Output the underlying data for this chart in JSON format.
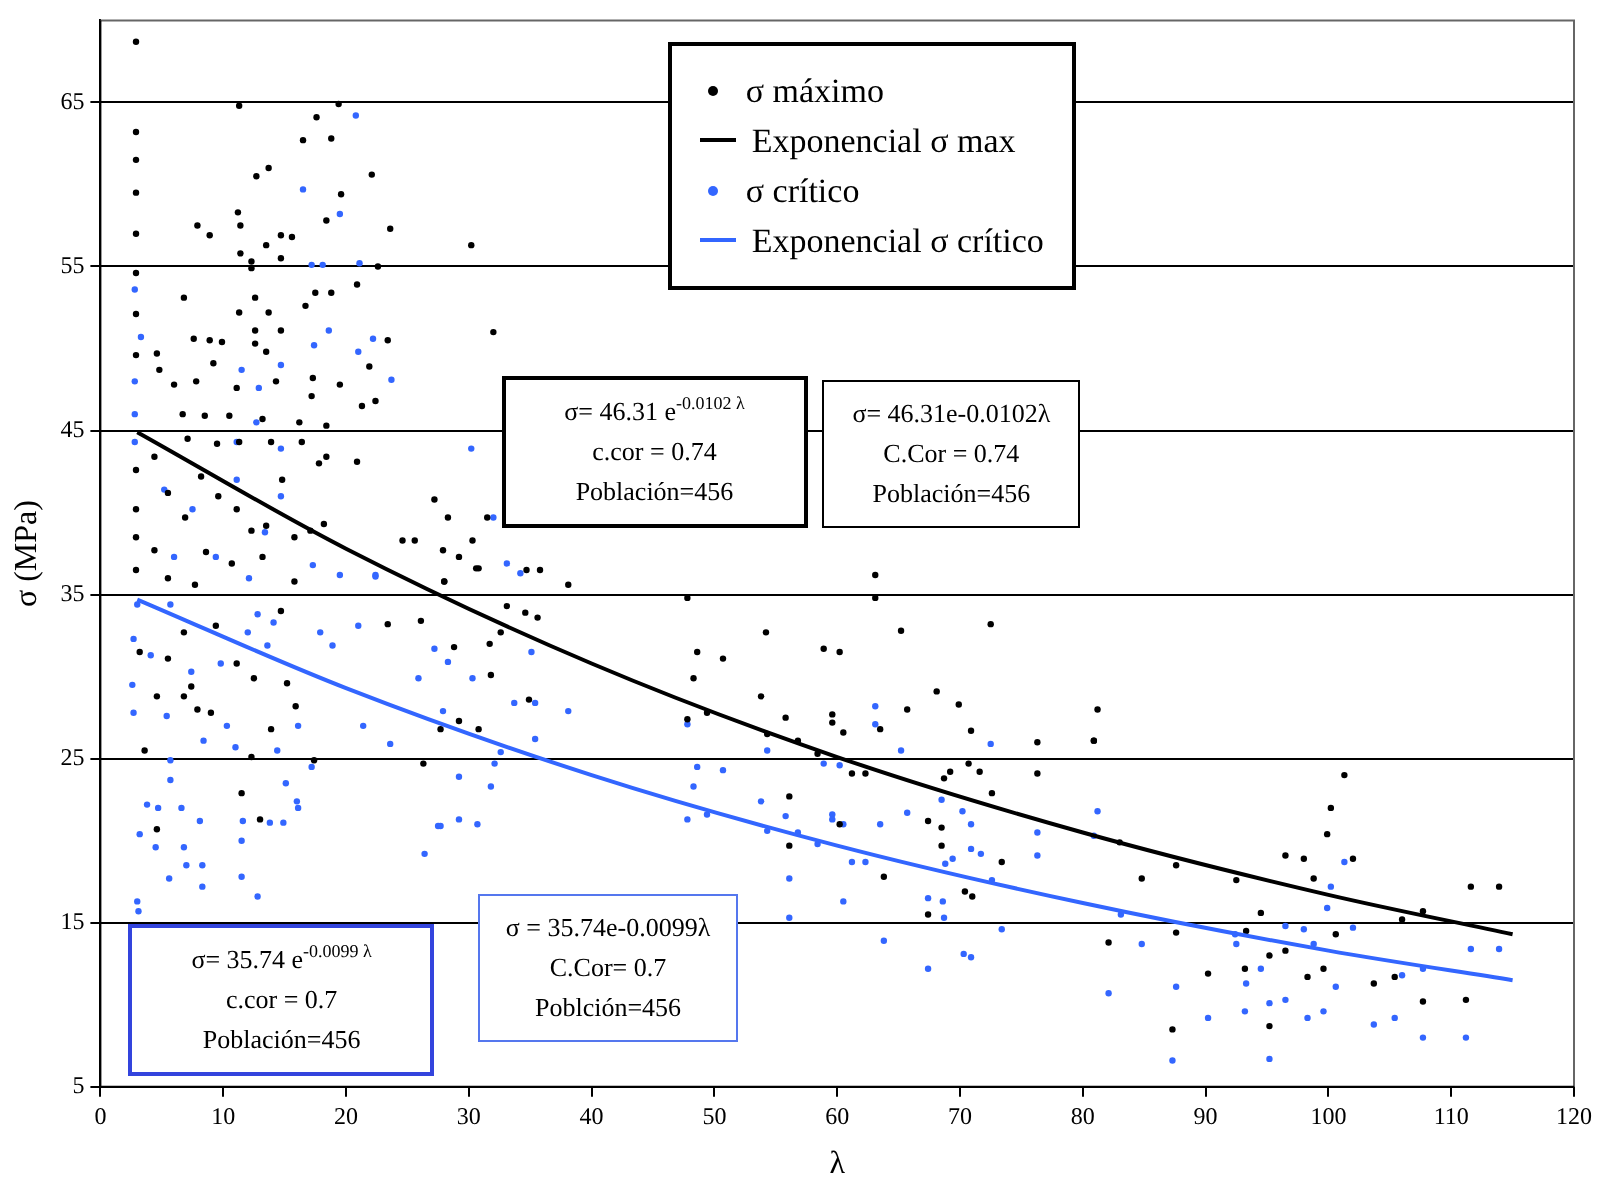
{
  "chart_data": {
    "type": "scatter",
    "xlabel": "λ",
    "ylabel": "σ (MPa)",
    "xlim": [
      0,
      120
    ],
    "xticks": [
      0,
      10,
      20,
      30,
      40,
      50,
      60,
      70,
      80,
      90,
      100,
      110,
      120
    ],
    "ylim": [
      5,
      70
    ],
    "yticks": [
      5,
      15,
      25,
      35,
      45,
      55,
      65
    ],
    "grid": "y",
    "legend": "top",
    "annotations": [
      "σ= 46.31 e$^{-0.0102 λ}$\nc.cor = 0.74\nPoblación=456",
      "σ= 46.31e-0.0102λ\nC.Cor = 0.74\nPoblación=456",
      "σ= 35.74 e$^{-0.0099 λ}$\nc.cor = 0.7\nPoblación=456",
      "σ = 35.74e-0.0099λ\nC.Cor= 0.7\nPoblción=456"
    ],
    "series": [
      {
        "name": "σ máximo",
        "type": "scatter",
        "marker": "circle",
        "color": "#000000",
        "x": [
          2.9,
          2.9,
          2.9,
          2.9,
          2.9,
          2.9,
          2.9,
          2.9,
          11.3,
          19.4,
          17.6,
          16.5,
          18.8,
          12.7,
          13.7,
          22.1,
          19.6,
          18.4,
          7.9,
          8.9,
          11.2,
          11.4,
          14.7,
          15.6,
          23.6,
          30.2,
          11.4,
          13.5,
          14.7,
          12.3,
          22.6,
          12.3,
          6.8,
          12.6,
          11.3,
          13.7,
          17.5,
          18.8,
          20.9,
          16.7,
          32,
          23.4,
          7.6,
          8.9,
          9.9,
          12.6,
          14.7,
          4.6,
          4.8,
          6,
          7.8,
          9.2,
          11.1,
          12.6,
          13.5,
          14.3,
          17.3,
          19.5,
          21.9,
          21.3,
          22.4,
          6.7,
          8.5,
          10.5,
          13.2,
          16.2,
          17.2,
          18.4,
          7.1,
          9.5,
          11.3,
          13.9,
          16.4,
          18.4,
          20.9,
          27.2,
          28.3,
          31.5,
          24.6,
          25.6,
          27.9,
          29.2,
          30.3,
          30.8,
          34.7,
          35.8,
          38.1,
          28,
          4.4,
          5.5,
          6.9,
          8.2,
          9.6,
          11.1,
          12.3,
          13.5,
          14.8,
          15.8,
          17.1,
          17.8,
          18.2,
          4.4,
          5.5,
          8.6,
          10.7,
          13.2,
          15.8,
          7.7,
          2.9,
          2.9,
          2.9,
          2.9,
          3.6,
          4.6,
          6.8,
          7.9,
          9,
          11.5,
          13,
          4.6,
          12.3,
          13.9,
          15.9,
          17.4,
          23.4,
          26.1,
          26.3,
          27.7,
          29.2,
          28.8,
          31.7,
          31.8,
          30.8,
          32.6,
          33.1,
          34.6,
          35.6,
          34.9,
          28,
          30.6,
          6.8,
          5.5,
          3.2,
          7.4,
          9.4,
          11.1,
          12.5,
          14.7,
          15.2,
          47.8,
          48.6,
          48.3,
          50.7,
          47.8,
          49.4,
          54.2,
          53.8,
          54.3,
          55.8,
          56.8,
          58.9,
          60.2,
          59.6,
          59.6,
          60.5,
          58.4,
          61.2,
          62.3,
          63.1,
          63.1,
          63.5,
          65.2,
          65.7,
          68.1,
          69.9,
          70.9,
          72.5,
          70.7,
          71.6,
          68.7,
          69.2,
          72.6,
          60.2,
          56.1,
          56.1,
          67.4,
          68.5,
          68.5,
          73.4,
          63.8,
          70.4,
          71,
          67.4,
          76.3,
          76.3,
          80.9,
          81.2,
          80.9,
          83,
          82.1,
          84.8,
          87.6,
          87.6,
          87.3,
          90.2,
          92.5,
          93.2,
          93.3,
          94.5,
          95.2,
          95.2,
          96.5,
          96.5,
          98,
          98.3,
          98.8,
          99.6,
          100.6,
          99.9,
          101.3,
          100.2,
          102,
          103.7,
          105.4,
          106,
          107.7,
          107.7,
          111.2,
          111.6,
          113.9
        ],
        "values": [
          68.7,
          63.2,
          61.5,
          59.5,
          57,
          54.6,
          52.1,
          49.6,
          64.8,
          64.9,
          64.1,
          62.7,
          62.8,
          60.5,
          61,
          60.6,
          59.4,
          57.8,
          57.5,
          56.9,
          58.3,
          57.5,
          56.9,
          56.8,
          57.3,
          56.3,
          55.8,
          56.3,
          55.5,
          55.3,
          55,
          54.9,
          53.1,
          53.1,
          52.2,
          52.2,
          53.4,
          53.4,
          53.9,
          52.6,
          51,
          50.5,
          50.6,
          50.5,
          50.4,
          51.1,
          51.1,
          49.7,
          48.7,
          47.8,
          48,
          49.1,
          47.6,
          50.3,
          49.8,
          48,
          48.2,
          47.8,
          48.9,
          46.5,
          46.8,
          46,
          45.9,
          45.9,
          45.7,
          45.5,
          47.1,
          45.3,
          44.5,
          44.2,
          44.3,
          44.3,
          44.3,
          43.4,
          43.1,
          40.8,
          39.7,
          39.7,
          38.3,
          38.3,
          37.7,
          37.3,
          38.3,
          36.6,
          36.5,
          36.5,
          35.6,
          35.8,
          43.4,
          41.2,
          39.7,
          42.2,
          41,
          40.2,
          38.9,
          39.2,
          42,
          38.5,
          38.9,
          43,
          39.3,
          37.7,
          36,
          37.6,
          36.9,
          37.3,
          35.8,
          35.6,
          42.6,
          40.2,
          38.5,
          36.5,
          25.5,
          28.8,
          28.8,
          28,
          27.8,
          22.9,
          21.3,
          20.7,
          25.1,
          26.8,
          28.2,
          24.9,
          33.2,
          33.4,
          24.7,
          26.8,
          27.3,
          31.8,
          32,
          30.1,
          26.8,
          32.7,
          34.3,
          33.9,
          33.6,
          28.6,
          35.8,
          36.6,
          32.7,
          31.1,
          31.5,
          29.4,
          33.1,
          30.8,
          29.9,
          34,
          29.6,
          34.8,
          31.5,
          29.9,
          31.1,
          27.4,
          27.8,
          32.7,
          28.8,
          26.5,
          27.5,
          26.1,
          31.7,
          31.5,
          27.7,
          27.2,
          26.6,
          25.3,
          24.1,
          24.1,
          36.2,
          34.8,
          26.8,
          32.8,
          28,
          29.1,
          28.3,
          26.7,
          33.2,
          24.7,
          24.2,
          23.8,
          24.2,
          22.9,
          21,
          22.7,
          19.7,
          21.2,
          20.8,
          19.7,
          18.7,
          17.8,
          16.9,
          16.6,
          15.5,
          26,
          24.1,
          26.1,
          28,
          26.1,
          19.9,
          13.8,
          17.7,
          18.5,
          14.4,
          8.5,
          11.9,
          17.6,
          12.2,
          14.5,
          15.6,
          13,
          8.7,
          19.1,
          13.3,
          18.9,
          11.7,
          17.7,
          12.2,
          14.3,
          20.4,
          24,
          22,
          18.9,
          11.3,
          11.7,
          15.2,
          15.7,
          10.2,
          10.3,
          17.2,
          17.2
        ]
      },
      {
        "name": "Exponencial σ max",
        "type": "line",
        "marker": "none",
        "line_style": "solid",
        "color": "#000000",
        "x": [
          3,
          20,
          40,
          60,
          80,
          100,
          115
        ],
        "values": [
          44.9,
          37.8,
          30.8,
          25.1,
          20.5,
          16.7,
          14.3
        ]
      },
      {
        "name": "σ crítico",
        "type": "scatter",
        "marker": "circle",
        "color": "#3366ff",
        "x": [
          20.8,
          16.5,
          19.5,
          17.2,
          18.1,
          21.1,
          2.8,
          3.3,
          2.8,
          2.8,
          2.8,
          11.5,
          12.9,
          14.7,
          17.4,
          18.6,
          21,
          22.2,
          23.7,
          30.2,
          12.7,
          11.1,
          14.7,
          32,
          33.1,
          34.2,
          22.4,
          19.5,
          17.3,
          12.1,
          9.4,
          6,
          5.2,
          7.5,
          13.4,
          14.7,
          11.1,
          2.6,
          2.7,
          2.7,
          3,
          3.1,
          3.8,
          3.2,
          4.5,
          4.7,
          5.6,
          5.7,
          6.6,
          6.8,
          7,
          8.3,
          8.1,
          8.3,
          11.5,
          11.5,
          11.6,
          12.8,
          13.8,
          15.1,
          14.9,
          16,
          16.1,
          17.2,
          21.4,
          23.6,
          26.4,
          27.5,
          27.7,
          29.2,
          30.7,
          29.2,
          31.8,
          32.1,
          32.6,
          35.4,
          38.1,
          27.9,
          25.9,
          18.9,
          21,
          22.4,
          27.2,
          28.3,
          30.3,
          33.7,
          35.4,
          35.1,
          3,
          4.1,
          5.7,
          5.4,
          7.4,
          9.8,
          10.3,
          11,
          12,
          12.8,
          13.6,
          14.1,
          14.4,
          16.1,
          17.9,
          8.4,
          5.7,
          47.8,
          48.6,
          48.3,
          47.8,
          49.4,
          50.7,
          53.8,
          54.3,
          54.3,
          55.8,
          56.1,
          56.1,
          56.8,
          58.4,
          58.9,
          59.6,
          59.6,
          60.2,
          60.5,
          61.2,
          62.3,
          60.5,
          63.1,
          63.1,
          63.5,
          63.8,
          65.2,
          65.7,
          67.4,
          67.4,
          68.5,
          68.6,
          68.7,
          68.8,
          69.4,
          70.2,
          70.3,
          70.9,
          70.9,
          70.9,
          71.7,
          72.5,
          72.6,
          73.4,
          76.3,
          76.3,
          81.2,
          80.9,
          82.1,
          83.1,
          84.8,
          87.6,
          87.3,
          90.2,
          92.4,
          92.5,
          93.2,
          93.3,
          94.5,
          95.2,
          95.2,
          96.5,
          96.5,
          98,
          98.3,
          98.8,
          99.6,
          100.6,
          99.9,
          100.2,
          101.3,
          102,
          103.7,
          105.4,
          106,
          107.7,
          107.7,
          111.2,
          111.6,
          113.9
        ],
        "values": [
          64.2,
          59.7,
          58.2,
          55.1,
          55.1,
          55.2,
          53.6,
          50.7,
          48,
          46,
          44.3,
          48.7,
          47.6,
          49,
          50.2,
          51.1,
          49.8,
          50.6,
          48.1,
          43.9,
          45.5,
          44.3,
          43.9,
          39.7,
          36.9,
          36.3,
          36.1,
          36.2,
          36.8,
          36,
          37.3,
          37.3,
          41.4,
          40.2,
          38.8,
          41,
          42,
          29.5,
          32.3,
          27.8,
          16.3,
          15.7,
          22.2,
          20.4,
          19.6,
          22,
          17.7,
          23.7,
          22,
          19.6,
          18.5,
          17.2,
          21.2,
          18.5,
          17.8,
          20,
          21.2,
          16.6,
          21.1,
          23.5,
          21.1,
          22.4,
          22,
          24.5,
          27,
          25.9,
          19.2,
          20.9,
          20.9,
          21.3,
          21,
          23.9,
          23.3,
          24.7,
          25.4,
          26.2,
          27.9,
          27.9,
          29.9,
          31.9,
          33.1,
          36.2,
          31.7,
          30.9,
          29.9,
          28.4,
          28.4,
          31.5,
          34.4,
          31.3,
          34.4,
          27.6,
          30.3,
          30.8,
          27,
          25.7,
          32.7,
          33.8,
          31.9,
          33.3,
          25.5,
          27,
          32.7,
          26.1,
          24.9,
          27.1,
          24.5,
          23.3,
          21.3,
          21.6,
          24.3,
          22.4,
          25.5,
          20.6,
          21.5,
          17.7,
          15.3,
          20.5,
          19.8,
          24.7,
          21.6,
          21.3,
          24.6,
          21,
          18.7,
          18.7,
          16.3,
          28.2,
          27.1,
          21,
          13.9,
          25.5,
          21.7,
          16.5,
          12.2,
          22.5,
          16.3,
          15.3,
          18.6,
          18.9,
          21.8,
          13.1,
          12.9,
          21,
          19.5,
          19.2,
          25.9,
          17.6,
          14.6,
          20.5,
          19.1,
          21.8,
          20.3,
          10.7,
          15.5,
          13.7,
          11.1,
          6.6,
          9.2,
          14.3,
          13.7,
          9.6,
          11.3,
          12.2,
          10.1,
          6.7,
          14.8,
          10.3,
          14.6,
          9.2,
          13.7,
          9.6,
          11.1,
          15.9,
          17.2,
          18.7,
          14.7,
          8.8,
          9.2,
          11.8,
          12.2,
          8,
          8,
          13.4,
          13.4
        ]
      },
      {
        "name": "Exponencial σ crítico",
        "type": "line",
        "marker": "none",
        "line_style": "solid",
        "color": "#3366ff",
        "x": [
          3,
          20,
          40,
          60,
          80,
          100,
          115
        ],
        "values": [
          34.7,
          29.3,
          24,
          19.7,
          16.2,
          13.3,
          11.5
        ]
      }
    ]
  }
}
